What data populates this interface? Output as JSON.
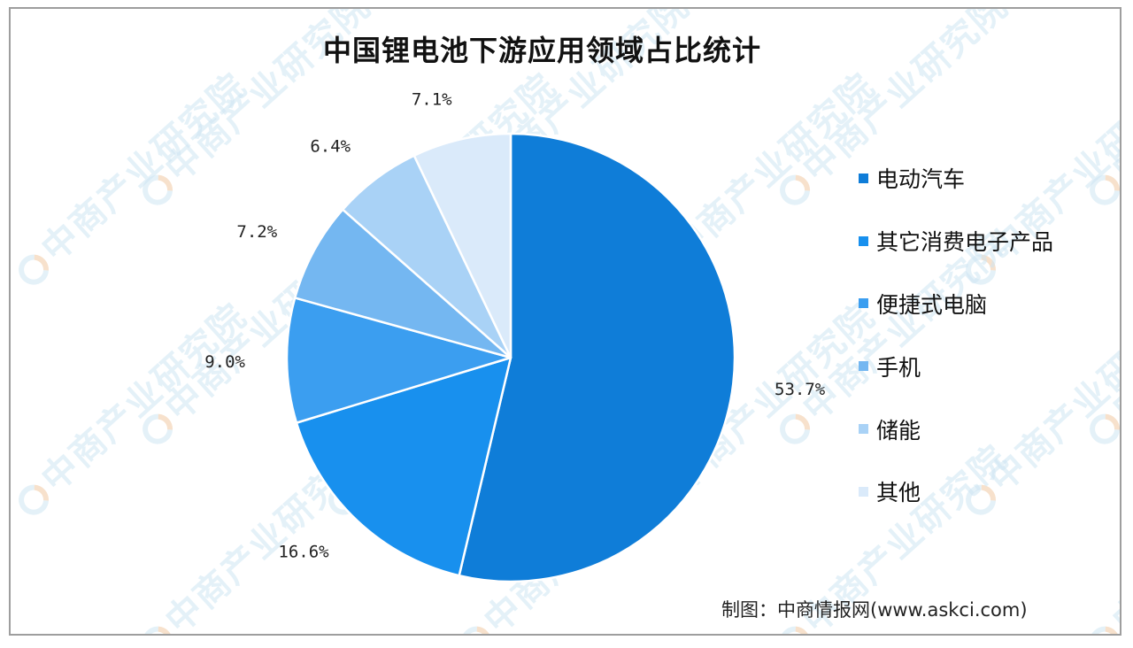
{
  "chart_data": {
    "type": "pie",
    "title": "中国锂电池下游应用领域占比统计",
    "categories": [
      "电动汽车",
      "其它消费电子产品",
      "便捷式电脑",
      "手机",
      "储能",
      "其他"
    ],
    "values": [
      53.7,
      16.6,
      9.0,
      7.2,
      6.4,
      7.1
    ],
    "value_labels": [
      "53.7%",
      "16.6%",
      "9.0%",
      "7.2%",
      "6.4%",
      "7.1%"
    ],
    "colors": [
      "#0f7dd8",
      "#1890ee",
      "#3b9ef0",
      "#74b7f1",
      "#a9d2f6",
      "#daeafa"
    ],
    "start": "12 o'clock",
    "direction": "clockwise",
    "legend_position": "right"
  },
  "source": "制图：中商情报网(www.askci.com)",
  "watermark": {
    "text": "中商产业研究院",
    "logo_icon": "askci-logo-icon"
  }
}
